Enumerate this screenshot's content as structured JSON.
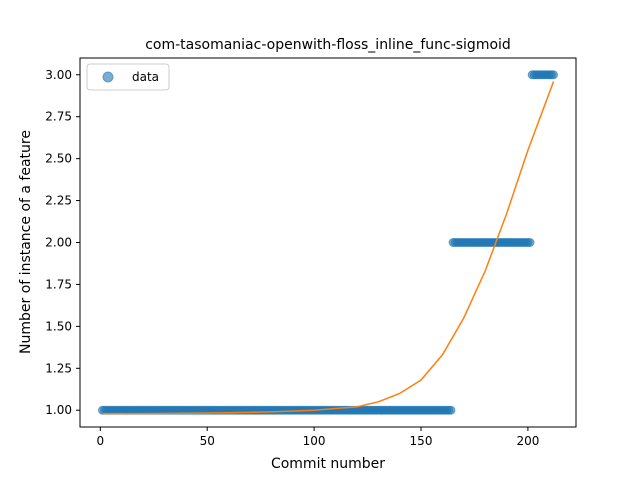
{
  "chart_data": {
    "type": "scatter",
    "title": "com-tasomaniac-openwith-floss_inline_func-sigmoid",
    "xlabel": "Commit number",
    "ylabel": "Number of instance of a feature",
    "xlim": [
      -9.5,
      222.5
    ],
    "ylim": [
      0.9,
      3.1
    ],
    "xticks": [
      0,
      50,
      100,
      150,
      200
    ],
    "yticks": [
      1.0,
      1.25,
      1.5,
      1.75,
      2.0,
      2.25,
      2.5,
      2.75,
      3.0
    ],
    "xtick_labels": [
      "0",
      "50",
      "100",
      "150",
      "200"
    ],
    "ytick_labels": [
      "1.00",
      "1.25",
      "1.50",
      "1.75",
      "2.00",
      "2.25",
      "2.50",
      "2.75",
      "3.00"
    ],
    "grid": false,
    "legend": {
      "position": "top-left",
      "entries": [
        "data"
      ]
    },
    "colors": {
      "data": "#1f77b4",
      "fit": "#ff7f0e"
    },
    "series": [
      {
        "name": "data",
        "kind": "scatter",
        "segments": [
          {
            "x_start": 1,
            "x_end": 164,
            "y": 1.0
          },
          {
            "x_start": 165,
            "x_end": 201,
            "y": 2.0
          },
          {
            "x_start": 202,
            "x_end": 212,
            "y": 3.0
          }
        ]
      },
      {
        "kind": "line",
        "points": [
          [
            1,
            0.98
          ],
          [
            20,
            0.98
          ],
          [
            40,
            0.982
          ],
          [
            60,
            0.985
          ],
          [
            80,
            0.99
          ],
          [
            100,
            1.0
          ],
          [
            110,
            1.01
          ],
          [
            120,
            1.02
          ],
          [
            130,
            1.05
          ],
          [
            140,
            1.1
          ],
          [
            150,
            1.18
          ],
          [
            160,
            1.33
          ],
          [
            170,
            1.55
          ],
          [
            180,
            1.83
          ],
          [
            190,
            2.17
          ],
          [
            200,
            2.55
          ],
          [
            212,
            2.96
          ]
        ]
      }
    ]
  }
}
